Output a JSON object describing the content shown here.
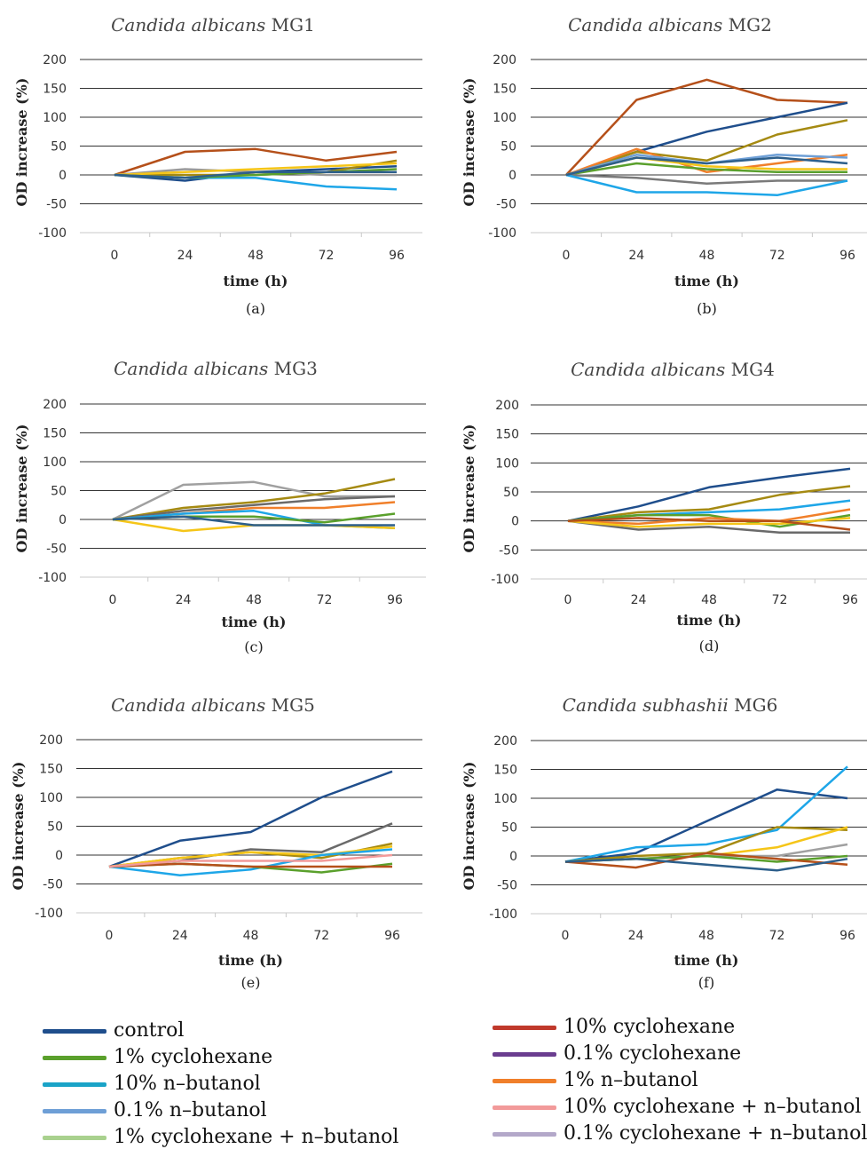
{
  "series_colors": {
    "control": "#1f4e8c",
    "1% cyclohexane": "#5aa02c",
    "10% n-butanol": "#1aa3c7",
    "0.1% n-butanol": "#6e9fd6",
    "1% cyclohexane + n-butanol": "#a9d18e",
    "10% cyclohexane": "#c0392b",
    "0.1% cyclohexane": "#6a3d8f",
    "1% n-butanol": "#f07f2a",
    "10% cyclohexane + n-butanol": "#f29a9a",
    "0.1% cyclohexane + n-butanol": "#b3a8c9"
  },
  "chart_data": [
    {
      "type": "line",
      "title_italic": "Candida albicans",
      "title_rest": " MG1",
      "panel_label": "(a)",
      "xlabel": "time (h)",
      "ylabel": "OD increase (%)",
      "x": [
        "0",
        "24",
        "48",
        "72",
        "96"
      ],
      "y_ticks": [
        "200",
        "150",
        "100",
        "50",
        "0",
        "-50",
        "-100"
      ],
      "ylim": [
        -100,
        200
      ],
      "series": [
        {
          "color": "#b5501a",
          "values": [
            0,
            40,
            45,
            25,
            40
          ]
        },
        {
          "color": "#1f4e8c",
          "values": [
            0,
            -10,
            5,
            10,
            15
          ]
        },
        {
          "color": "#1ea6e8",
          "values": [
            0,
            -5,
            -5,
            -20,
            -25
          ]
        },
        {
          "color": "#a58a12",
          "values": [
            0,
            0,
            0,
            5,
            25
          ]
        },
        {
          "color": "#9a9a9a",
          "values": [
            0,
            10,
            5,
            0,
            0
          ]
        },
        {
          "color": "#f5c518",
          "values": [
            0,
            5,
            10,
            15,
            20
          ]
        },
        {
          "color": "#5aa02c",
          "values": [
            0,
            -5,
            0,
            5,
            10
          ]
        },
        {
          "color": "#2d5f8b",
          "values": [
            0,
            -5,
            5,
            5,
            5
          ]
        }
      ]
    },
    {
      "type": "line",
      "title_italic": "Candida albicans",
      "title_rest": " MG2",
      "panel_label": "(b)",
      "xlabel": "time (h)",
      "ylabel": "OD increase (%)",
      "x": [
        "0",
        "24",
        "48",
        "72",
        "96"
      ],
      "y_ticks": [
        "200",
        "150",
        "100",
        "50",
        "0",
        "-50",
        "-100"
      ],
      "ylim": [
        -100,
        200
      ],
      "series": [
        {
          "color": "#b5501a",
          "values": [
            0,
            130,
            165,
            130,
            125
          ]
        },
        {
          "color": "#1f4e8c",
          "values": [
            0,
            40,
            75,
            100,
            125
          ]
        },
        {
          "color": "#a58a12",
          "values": [
            0,
            40,
            25,
            70,
            95
          ]
        },
        {
          "color": "#f07f2a",
          "values": [
            0,
            45,
            5,
            20,
            35
          ]
        },
        {
          "color": "#6e9fd6",
          "values": [
            0,
            35,
            20,
            35,
            30
          ]
        },
        {
          "color": "#5aa02c",
          "values": [
            0,
            20,
            10,
            5,
            5
          ]
        },
        {
          "color": "#f5c518",
          "values": [
            0,
            30,
            15,
            10,
            10
          ]
        },
        {
          "color": "#7a7a7a",
          "values": [
            0,
            -5,
            -15,
            -10,
            -10
          ]
        },
        {
          "color": "#1ea6e8",
          "values": [
            0,
            -30,
            -30,
            -35,
            -10
          ]
        },
        {
          "color": "#2d5f8b",
          "values": [
            0,
            30,
            20,
            30,
            20
          ]
        }
      ]
    },
    {
      "type": "line",
      "title_italic": "Candida albicans",
      "title_rest": " MG3",
      "panel_label": "(c)",
      "xlabel": "time (h)",
      "ylabel": "OD increase (%)",
      "x": [
        "0",
        "24",
        "48",
        "72",
        "96"
      ],
      "y_ticks": [
        "200",
        "150",
        "100",
        "50",
        "0",
        "-50",
        "-100"
      ],
      "ylim": [
        -100,
        200
      ],
      "series": [
        {
          "color": "#a0a0a0",
          "values": [
            0,
            60,
            65,
            40,
            40
          ]
        },
        {
          "color": "#a58a12",
          "values": [
            0,
            20,
            30,
            45,
            70
          ]
        },
        {
          "color": "#6a6a6a",
          "values": [
            0,
            15,
            25,
            35,
            40
          ]
        },
        {
          "color": "#f07f2a",
          "values": [
            0,
            10,
            20,
            20,
            30
          ]
        },
        {
          "color": "#1ea6e8",
          "values": [
            0,
            10,
            15,
            -10,
            -15
          ]
        },
        {
          "color": "#f5c518",
          "values": [
            0,
            -20,
            -10,
            -10,
            -15
          ]
        },
        {
          "color": "#5aa02c",
          "values": [
            0,
            5,
            5,
            -5,
            10
          ]
        },
        {
          "color": "#2d5f8b",
          "values": [
            0,
            5,
            -10,
            -10,
            -10
          ]
        }
      ]
    },
    {
      "type": "line",
      "title_italic": "Candida albicans",
      "title_rest": " MG4",
      "panel_label": "(d)",
      "xlabel": "time (h)",
      "ylabel": "OD increase (%)",
      "x": [
        "0",
        "24",
        "48",
        "72",
        "96"
      ],
      "y_ticks": [
        "200",
        "150",
        "100",
        "50",
        "0",
        "-50",
        "-100"
      ],
      "ylim": [
        -100,
        200
      ],
      "series": [
        {
          "color": "#1f4e8c",
          "values": [
            0,
            25,
            58,
            75,
            90
          ]
        },
        {
          "color": "#a58a12",
          "values": [
            0,
            15,
            20,
            45,
            60
          ]
        },
        {
          "color": "#1ea6e8",
          "values": [
            0,
            10,
            15,
            20,
            35
          ]
        },
        {
          "color": "#5aa02c",
          "values": [
            0,
            10,
            10,
            -10,
            10
          ]
        },
        {
          "color": "#f07f2a",
          "values": [
            0,
            -5,
            5,
            0,
            20
          ]
        },
        {
          "color": "#6a6a6a",
          "values": [
            0,
            -15,
            -10,
            -20,
            -20
          ]
        },
        {
          "color": "#f5c518",
          "values": [
            0,
            -10,
            -5,
            -5,
            5
          ]
        },
        {
          "color": "#b5501a",
          "values": [
            0,
            5,
            0,
            0,
            -15
          ]
        }
      ]
    },
    {
      "type": "line",
      "title_italic": "Candida albicans",
      "title_rest": " MG5",
      "panel_label": "(e)",
      "xlabel": "time (h)",
      "ylabel": "OD increase (%)",
      "x": [
        "0",
        "24",
        "48",
        "72",
        "96"
      ],
      "y_ticks": [
        "200",
        "150",
        "100",
        "50",
        "0",
        "-50",
        "-100"
      ],
      "ylim": [
        -100,
        200
      ],
      "series": [
        {
          "color": "#1f4e8c",
          "values": [
            -20,
            25,
            40,
            100,
            145
          ]
        },
        {
          "color": "#6a6a6a",
          "values": [
            -20,
            -10,
            10,
            5,
            55
          ]
        },
        {
          "color": "#a58a12",
          "values": [
            -20,
            -5,
            5,
            -5,
            20
          ]
        },
        {
          "color": "#f5c518",
          "values": [
            -20,
            -5,
            5,
            0,
            15
          ]
        },
        {
          "color": "#1ea6e8",
          "values": [
            -20,
            -35,
            -25,
            0,
            10
          ]
        },
        {
          "color": "#5aa02c",
          "values": [
            -20,
            -15,
            -20,
            -30,
            -15
          ]
        },
        {
          "color": "#b5501a",
          "values": [
            -20,
            -15,
            -20,
            -20,
            -20
          ]
        },
        {
          "color": "#f29a9a",
          "values": [
            -20,
            -10,
            -10,
            -10,
            0
          ]
        }
      ]
    },
    {
      "type": "line",
      "title_italic": "Candida subhashii",
      "title_rest": " MG6",
      "panel_label": "(f)",
      "xlabel": "time (h)",
      "ylabel": "OD increase (%)",
      "x": [
        "0",
        "24",
        "48",
        "72",
        "96"
      ],
      "y_ticks": [
        "200",
        "150",
        "100",
        "50",
        "0",
        "-50",
        "-100"
      ],
      "ylim": [
        -100,
        200
      ],
      "series": [
        {
          "color": "#1f4e8c",
          "values": [
            -10,
            5,
            60,
            115,
            100
          ]
        },
        {
          "color": "#1ea6e8",
          "values": [
            -10,
            15,
            20,
            45,
            155
          ]
        },
        {
          "color": "#a58a12",
          "values": [
            -10,
            0,
            5,
            50,
            45
          ]
        },
        {
          "color": "#f5c518",
          "values": [
            -10,
            -5,
            0,
            15,
            50
          ]
        },
        {
          "color": "#a0a0a0",
          "values": [
            -10,
            -5,
            0,
            0,
            20
          ]
        },
        {
          "color": "#5aa02c",
          "values": [
            -10,
            -5,
            0,
            -10,
            0
          ]
        },
        {
          "color": "#b5501a",
          "values": [
            -10,
            -20,
            5,
            -5,
            -15
          ]
        },
        {
          "color": "#2d5f8b",
          "values": [
            -10,
            -5,
            -15,
            -25,
            -5
          ]
        }
      ]
    }
  ],
  "legend": [
    {
      "label": "control",
      "color": "#1f4e8c"
    },
    {
      "label": "1% cyclohexane",
      "color": "#5aa02c"
    },
    {
      "label": "10% n–butanol",
      "color": "#1aa3c7"
    },
    {
      "label": "0.1% n–butanol",
      "color": "#6e9fd6"
    },
    {
      "label": "1% cyclohexane + n–butanol",
      "color": "#a9d18e"
    },
    {
      "label": "10% cyclohexane",
      "color": "#c0392b"
    },
    {
      "label": "0.1% cyclohexane",
      "color": "#6a3d8f"
    },
    {
      "label": "1% n–butanol",
      "color": "#f07f2a"
    },
    {
      "label": "10% cyclohexane + n–butanol",
      "color": "#f29a9a"
    },
    {
      "label": "0.1% cyclohexane + n–butanol",
      "color": "#b3a8c9"
    }
  ]
}
